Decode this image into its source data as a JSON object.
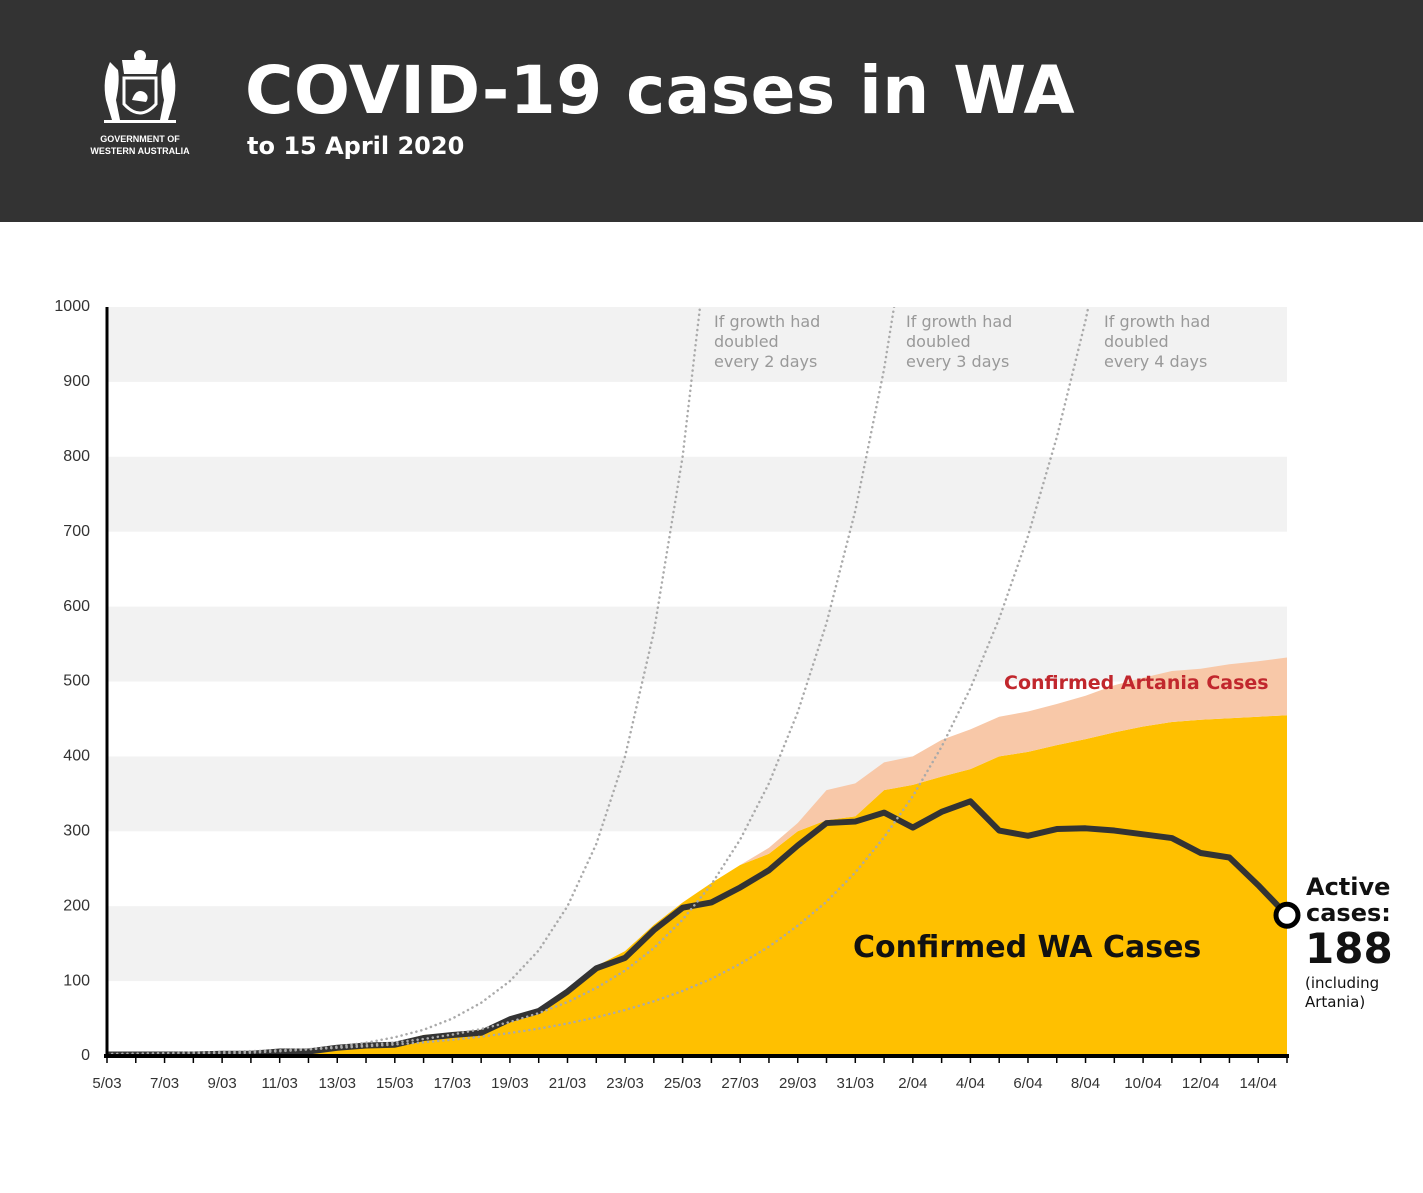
{
  "chart_data": {
    "type": "area",
    "title": "COVID-19 cases in WA",
    "subtitle": "to 15 April 2020",
    "agency": [
      "GOVERNMENT OF",
      "WESTERN AUSTRALIA"
    ],
    "categories": [
      "5/03",
      null,
      "7/03",
      null,
      "9/03",
      null,
      "11/03",
      null,
      "13/03",
      null,
      "15/03",
      null,
      "17/03",
      null,
      "19/03",
      null,
      "21/03",
      null,
      "23/03",
      null,
      "25/03",
      null,
      "27/03",
      null,
      "29/03",
      null,
      "31/03",
      null,
      "2/04",
      null,
      "4/04",
      null,
      "6/04",
      null,
      "8/04",
      null,
      "10/04",
      null,
      "12/04",
      null,
      "14/04",
      null
    ],
    "ylim": [
      0,
      1000
    ],
    "yticks": [
      0,
      100,
      200,
      300,
      400,
      500,
      600,
      700,
      800,
      900,
      1000
    ],
    "grid": "bands",
    "series": [
      {
        "name": "Confirmed WA Cases",
        "color": "#FFC000",
        "stacked": true,
        "values": [
          2,
          2,
          2,
          3,
          4,
          4,
          9,
          9,
          14,
          17,
          18,
          28,
          31,
          35,
          52,
          64,
          90,
          120,
          140,
          175,
          205,
          231,
          255,
          270,
          300,
          315,
          320,
          355,
          362,
          373,
          383,
          400,
          406,
          415,
          423,
          432,
          440,
          446,
          449,
          451,
          453,
          455
        ]
      },
      {
        "name": "Confirmed Artania Cases",
        "color": "#F8C8A8",
        "stacked": true,
        "values": [
          0,
          0,
          0,
          0,
          0,
          0,
          0,
          0,
          0,
          0,
          0,
          0,
          0,
          0,
          0,
          0,
          0,
          0,
          0,
          0,
          0,
          0,
          0,
          8,
          11,
          40,
          44,
          37,
          38,
          49,
          53,
          53,
          54,
          55,
          58,
          63,
          65,
          68,
          68,
          72,
          74,
          77
        ]
      },
      {
        "name": "Active cases:",
        "color": "#333333",
        "line": "solid",
        "values": [
          2,
          2,
          2,
          2,
          3,
          3,
          6,
          6,
          11,
          14,
          15,
          24,
          28,
          31,
          49,
          60,
          86,
          117,
          131,
          168,
          198,
          205,
          225,
          248,
          281,
          311,
          313,
          325,
          305,
          326,
          340,
          301,
          294,
          303,
          304,
          301,
          296,
          291,
          271,
          265,
          228,
          188
        ]
      },
      {
        "name": "If growth had doubled every 2 days",
        "color": "#AAAAAA",
        "line": "dotted",
        "values": [
          0.8,
          1.1,
          1.6,
          2.2,
          3.1,
          4.4,
          6.3,
          8.8,
          12.5,
          17.7,
          25,
          35,
          50,
          71,
          100,
          141,
          200,
          283,
          400,
          566,
          800,
          1131,
          null,
          null,
          null,
          null,
          null,
          null,
          null,
          null,
          null,
          null,
          null,
          null,
          null,
          null,
          null,
          null,
          null,
          null,
          null,
          null
        ]
      },
      {
        "name": "If growth had doubled every 3 days",
        "color": "#AAAAAA",
        "line": "dotted",
        "values": [
          1.8,
          2.2,
          2.8,
          3.6,
          4.5,
          5.7,
          7.1,
          9,
          11.3,
          14.3,
          18,
          22.7,
          28.6,
          36,
          45.4,
          57.2,
          72,
          90.8,
          114,
          144,
          182,
          229,
          289,
          364,
          459,
          578,
          728,
          917,
          1156,
          null,
          null,
          null,
          null,
          null,
          null,
          null,
          null,
          null,
          null,
          null,
          null,
          null
        ]
      },
      {
        "name": "If growth had doubled every 4 days",
        "color": "#AAAAAA",
        "line": "dotted",
        "values": [
          2.7,
          3.2,
          3.8,
          4.6,
          5.4,
          6.5,
          7.7,
          9.1,
          10.9,
          12.9,
          15.4,
          18.3,
          21.7,
          25.8,
          30.7,
          36.5,
          43.4,
          51.6,
          61.4,
          73,
          86.8,
          103,
          123,
          146,
          174,
          206,
          245,
          292,
          347,
          413,
          491,
          584,
          694,
          826,
          982,
          1168,
          null,
          null,
          null,
          null,
          null,
          null
        ]
      }
    ],
    "annotations": [
      "(including Artania)"
    ]
  }
}
